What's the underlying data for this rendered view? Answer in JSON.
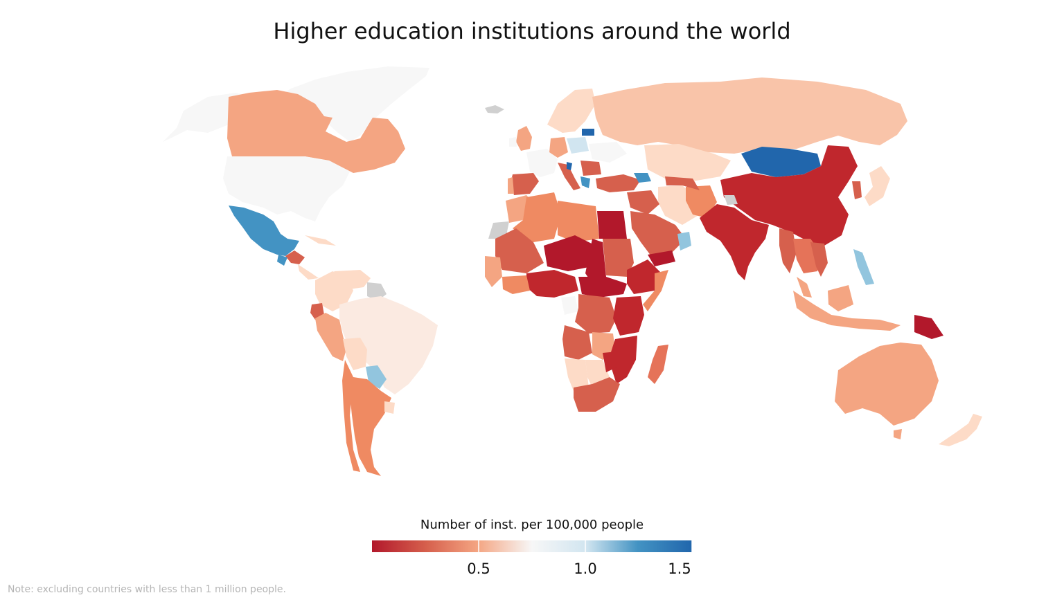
{
  "title": "Higher education institutions around the world",
  "note": "Note: excluding countries with less than 1 million people.",
  "colors": {
    "very_low": "#b2182b",
    "low": "#d6604d",
    "mid_low": "#f4a582",
    "pale": "#fddbc7",
    "neutral": "#f7f7f7",
    "pale_blue": "#d1e5f0",
    "mid_blue": "#92c5de",
    "blue": "#4393c3",
    "dark_blue": "#2166ac",
    "no_data": "#d0d0d0"
  },
  "chart_data": {
    "type": "choropleth",
    "metric": "Number of inst. per 100,000 people",
    "colorbar": {
      "title": "Number of inst. per 100,000 people",
      "range": [
        0,
        1.5
      ],
      "ticks": [
        {
          "value": 0.5,
          "label": "0.5"
        },
        {
          "value": 1.0,
          "label": "1.0"
        },
        {
          "value": 1.5,
          "label": "1.5"
        }
      ],
      "colormap": "RdBu"
    },
    "regions": [
      {
        "name": "Canada",
        "value": 0.4
      },
      {
        "name": "United States",
        "value": 0.8
      },
      {
        "name": "Greenland",
        "value": 0.8
      },
      {
        "name": "Mexico",
        "value": 1.2
      },
      {
        "name": "Russia",
        "value": 0.45
      },
      {
        "name": "China",
        "value": 0.1
      },
      {
        "name": "Mongolia",
        "value": 1.5
      },
      {
        "name": "India",
        "value": 0.1
      },
      {
        "name": "Australia",
        "value": 0.4
      },
      {
        "name": "Brazil",
        "value": 0.7
      },
      {
        "name": "Argentina",
        "value": 0.3
      },
      {
        "name": "Paraguay",
        "value": 1.1
      },
      {
        "name": "Egypt",
        "value": 0.05
      },
      {
        "name": "Sub-Saharan Africa",
        "value": 0.15
      },
      {
        "name": "South Africa",
        "value": 0.2
      },
      {
        "name": "Madagascar",
        "value": 0.25
      },
      {
        "name": "Indonesia",
        "value": 0.5
      },
      {
        "name": "Philippines",
        "value": 1.1
      },
      {
        "name": "Kazakhstan",
        "value": 0.6
      },
      {
        "name": "Western Europe",
        "value": 0.8
      },
      {
        "name": "Eastern Europe",
        "value": 0.9
      },
      {
        "name": "Papua New Guinea",
        "value": 0.05
      },
      {
        "name": "Japan",
        "value": 0.6
      },
      {
        "name": "Iran",
        "value": 0.5
      },
      {
        "name": "Saudi Arabia",
        "value": 0.25
      },
      {
        "name": "Peru",
        "value": 0.3
      },
      {
        "name": "Colombia",
        "value": 0.55
      }
    ]
  }
}
